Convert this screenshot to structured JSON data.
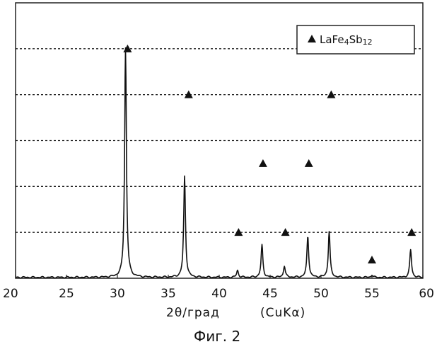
{
  "caption": "Фиг. 2",
  "chart_data": {
    "type": "line",
    "title": "",
    "xlabel": "2θ/град",
    "xlabel_suffix": "(CuKα)",
    "ylabel": "",
    "xlim": [
      20,
      60
    ],
    "ylim": [
      0,
      6
    ],
    "xticks": [
      "20",
      "25",
      "30",
      "35",
      "40",
      "45",
      "50",
      "55",
      "60"
    ],
    "grid": "horizontal dashed",
    "legend": {
      "placement": "top-right",
      "entry": {
        "marker": "triangle",
        "name_main": "LaFe",
        "sub1": "4",
        "mid": "Sb",
        "sub2": "12"
      }
    },
    "series": [
      {
        "pattern": "XRD",
        "peaks": [
          {
            "x": 30.8,
            "y": 5.0
          },
          {
            "x": 36.6,
            "y": 2.2
          },
          {
            "x": 41.8,
            "y": 0.15
          },
          {
            "x": 44.2,
            "y": 0.7
          },
          {
            "x": 46.4,
            "y": 0.25
          },
          {
            "x": 48.7,
            "y": 0.9
          },
          {
            "x": 50.8,
            "y": 1.0
          },
          {
            "x": 55.0,
            "y": 0.05
          },
          {
            "x": 58.8,
            "y": 0.6
          }
        ]
      }
    ],
    "markers": [
      {
        "x": 31.0,
        "y": 5.0
      },
      {
        "x": 37.0,
        "y": 4.0
      },
      {
        "x": 51.0,
        "y": 4.0
      },
      {
        "x": 44.3,
        "y": 2.5
      },
      {
        "x": 48.8,
        "y": 2.5
      },
      {
        "x": 41.9,
        "y": 1.0
      },
      {
        "x": 46.5,
        "y": 1.0
      },
      {
        "x": 55.0,
        "y": 0.4
      },
      {
        "x": 58.9,
        "y": 1.0
      }
    ]
  }
}
